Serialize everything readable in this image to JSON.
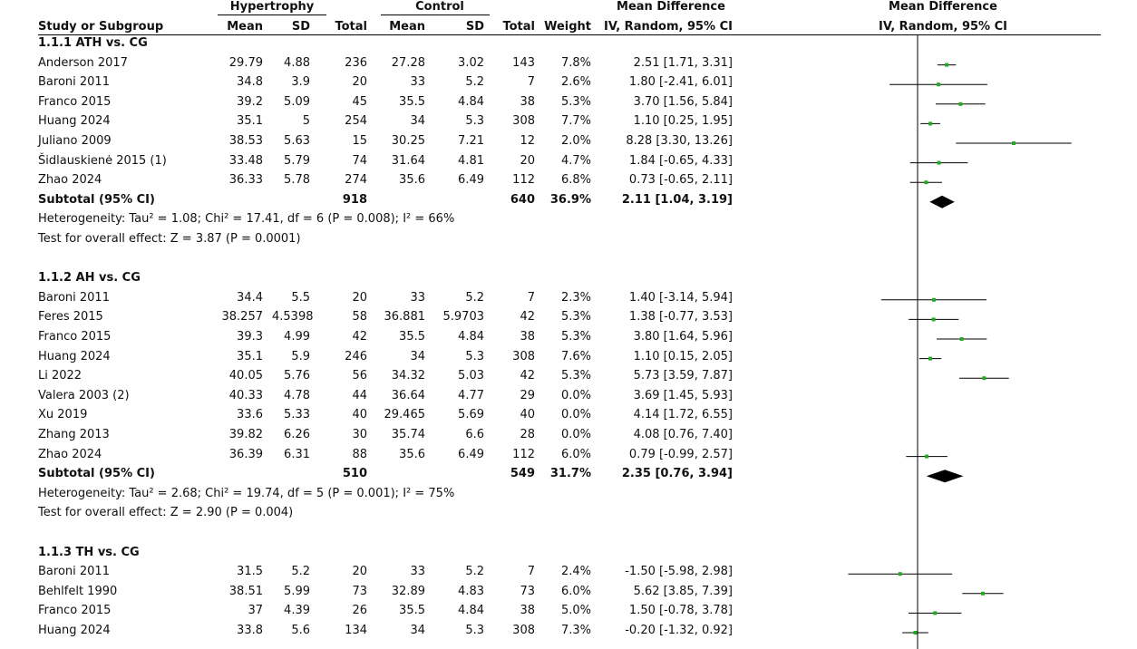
{
  "columns": {
    "group_hyper": "Hypertrophy",
    "group_control": "Control",
    "md_header": "Mean Difference",
    "plot_header": "Mean Difference",
    "study": "Study or Subgroup",
    "mean_e": "Mean",
    "sd_e": "SD",
    "total_e": "Total",
    "mean_c": "Mean",
    "sd_c": "SD",
    "total_c": "Total",
    "weight": "Weight",
    "md_sub": "IV, Random, 95% CI",
    "plot_sub": "IV, Random, 95% CI"
  },
  "subgroups": [
    {
      "title": "1.1.1 ATH vs. CG",
      "studies": [
        {
          "name": "Anderson 2017",
          "m1": "29.79",
          "s1": "4.88",
          "n1": "236",
          "m2": "27.28",
          "s2": "3.02",
          "n2": "143",
          "w": "7.8%",
          "ci": "2.51 [1.71, 3.31]"
        },
        {
          "name": "Baroni  2011",
          "m1": "34.8",
          "s1": "3.9",
          "n1": "20",
          "m2": "33",
          "s2": "5.2",
          "n2": "7",
          "w": "2.6%",
          "ci": "1.80 [-2.41, 6.01]"
        },
        {
          "name": "Franco  2015",
          "m1": "39.2",
          "s1": "5.09",
          "n1": "45",
          "m2": "35.5",
          "s2": "4.84",
          "n2": "38",
          "w": "5.3%",
          "ci": "3.70 [1.56, 5.84]"
        },
        {
          "name": "Huang 2024",
          "m1": "35.1",
          "s1": "5",
          "n1": "254",
          "m2": "34",
          "s2": "5.3",
          "n2": "308",
          "w": "7.7%",
          "ci": "1.10 [0.25, 1.95]"
        },
        {
          "name": "Juliano 2009",
          "m1": "38.53",
          "s1": "5.63",
          "n1": "15",
          "m2": "30.25",
          "s2": "7.21",
          "n2": "12",
          "w": "2.0%",
          "ci": "8.28 [3.30, 13.26]"
        },
        {
          "name": "Šidlauskienė 2015 (1)",
          "m1": "33.48",
          "s1": "5.79",
          "n1": "74",
          "m2": "31.64",
          "s2": "4.81",
          "n2": "20",
          "w": "4.7%",
          "ci": "1.84 [-0.65, 4.33]"
        },
        {
          "name": "Zhao 2024",
          "m1": "36.33",
          "s1": "5.78",
          "n1": "274",
          "m2": "35.6",
          "s2": "6.49",
          "n2": "112",
          "w": "6.8%",
          "ci": "0.73 [-0.65, 2.11]"
        }
      ],
      "subtotal": {
        "label": "Subtotal (95% CI)",
        "n1": "918",
        "n2": "640",
        "w": "36.9%",
        "ci": "2.11 [1.04, 3.19]"
      },
      "heterogeneity": "Heterogeneity: Tau² = 1.08; Chi² = 17.41, df = 6 (P = 0.008); I² = 66%",
      "overall": "Test for overall effect: Z = 3.87 (P = 0.0001)"
    },
    {
      "title": "1.1.2 AH vs. CG",
      "studies": [
        {
          "name": "Baroni  2011",
          "m1": "34.4",
          "s1": "5.5",
          "n1": "20",
          "m2": "33",
          "s2": "5.2",
          "n2": "7",
          "w": "2.3%",
          "ci": "1.40 [-3.14, 5.94]"
        },
        {
          "name": "Feres  2015",
          "m1": "38.257",
          "s1": "4.5398",
          "n1": "58",
          "m2": "36.881",
          "s2": "5.9703",
          "n2": "42",
          "w": "5.3%",
          "ci": "1.38 [-0.77, 3.53]"
        },
        {
          "name": "Franco  2015",
          "m1": "39.3",
          "s1": "4.99",
          "n1": "42",
          "m2": "35.5",
          "s2": "4.84",
          "n2": "38",
          "w": "5.3%",
          "ci": "3.80 [1.64, 5.96]"
        },
        {
          "name": "Huang 2024",
          "m1": "35.1",
          "s1": "5.9",
          "n1": "246",
          "m2": "34",
          "s2": "5.3",
          "n2": "308",
          "w": "7.6%",
          "ci": "1.10 [0.15, 2.05]"
        },
        {
          "name": "Li 2022",
          "m1": "40.05",
          "s1": "5.76",
          "n1": "56",
          "m2": "34.32",
          "s2": "5.03",
          "n2": "42",
          "w": "5.3%",
          "ci": "5.73 [3.59, 7.87]"
        },
        {
          "name": "Valera  2003 (2)",
          "m1": "40.33",
          "s1": "4.78",
          "n1": "44",
          "m2": "36.64",
          "s2": "4.77",
          "n2": "29",
          "w": "0.0%",
          "ci": "3.69 [1.45, 5.93]"
        },
        {
          "name": "Xu 2019",
          "m1": "33.6",
          "s1": "5.33",
          "n1": "40",
          "m2": "29.465",
          "s2": "5.69",
          "n2": "40",
          "w": "0.0%",
          "ci": "4.14 [1.72, 6.55]"
        },
        {
          "name": "Zhang  2013",
          "m1": "39.82",
          "s1": "6.26",
          "n1": "30",
          "m2": "35.74",
          "s2": "6.6",
          "n2": "28",
          "w": "0.0%",
          "ci": "4.08 [0.76, 7.40]"
        },
        {
          "name": "Zhao 2024",
          "m1": "36.39",
          "s1": "6.31",
          "n1": "88",
          "m2": "35.6",
          "s2": "6.49",
          "n2": "112",
          "w": "6.0%",
          "ci": "0.79 [-0.99, 2.57]"
        }
      ],
      "subtotal": {
        "label": "Subtotal (95% CI)",
        "n1": "510",
        "n2": "549",
        "w": "31.7%",
        "ci": "2.35 [0.76, 3.94]"
      },
      "heterogeneity": "Heterogeneity: Tau² = 2.68; Chi² = 19.74, df = 5 (P = 0.001); I² = 75%",
      "overall": "Test for overall effect: Z = 2.90 (P = 0.004)"
    },
    {
      "title": "1.1.3 TH vs. CG",
      "studies": [
        {
          "name": "Baroni  2011",
          "m1": "31.5",
          "s1": "5.2",
          "n1": "20",
          "m2": "33",
          "s2": "5.2",
          "n2": "7",
          "w": "2.4%",
          "ci": "-1.50 [-5.98, 2.98]"
        },
        {
          "name": "Behlfelt 1990",
          "m1": "38.51",
          "s1": "5.99",
          "n1": "73",
          "m2": "32.89",
          "s2": "4.83",
          "n2": "73",
          "w": "6.0%",
          "ci": "5.62 [3.85, 7.39]"
        },
        {
          "name": "Franco  2015",
          "m1": "37",
          "s1": "4.39",
          "n1": "26",
          "m2": "35.5",
          "s2": "4.84",
          "n2": "38",
          "w": "5.0%",
          "ci": "1.50 [-0.78, 3.78]"
        },
        {
          "name": "Huang 2024",
          "m1": "33.8",
          "s1": "5.6",
          "n1": "134",
          "m2": "34",
          "s2": "5.3",
          "n2": "308",
          "w": "7.3%",
          "ci": "-0.20 [-1.32, 0.92]"
        }
      ]
    }
  ],
  "chart_data": {
    "type": "forest",
    "null_line": 0,
    "square_color": "#22aa22",
    "subgroups": [
      {
        "title": "1.1.1 ATH vs. CG",
        "points": [
          [
            2.51,
            1.71,
            3.31
          ],
          [
            1.8,
            -2.41,
            6.01
          ],
          [
            3.7,
            1.56,
            5.84
          ],
          [
            1.1,
            0.25,
            1.95
          ],
          [
            8.28,
            3.3,
            13.26
          ],
          [
            1.84,
            -0.65,
            4.33
          ],
          [
            0.73,
            -0.65,
            2.11
          ]
        ],
        "pooled": [
          2.11,
          1.04,
          3.19
        ]
      },
      {
        "title": "1.1.2 AH vs. CG",
        "points": [
          [
            1.4,
            -3.14,
            5.94
          ],
          [
            1.38,
            -0.77,
            3.53
          ],
          [
            3.8,
            1.64,
            5.96
          ],
          [
            1.1,
            0.15,
            2.05
          ],
          [
            5.73,
            3.59,
            7.87
          ],
          null,
          null,
          null,
          [
            0.79,
            -0.99,
            2.57
          ]
        ],
        "pooled": [
          2.35,
          0.76,
          3.94
        ]
      },
      {
        "title": "1.1.3 TH vs. CG",
        "points": [
          [
            -1.5,
            -5.98,
            2.98
          ],
          [
            5.62,
            3.85,
            7.39
          ],
          [
            1.5,
            -0.78,
            3.78
          ],
          [
            -0.2,
            -1.32,
            0.92
          ]
        ]
      }
    ]
  }
}
